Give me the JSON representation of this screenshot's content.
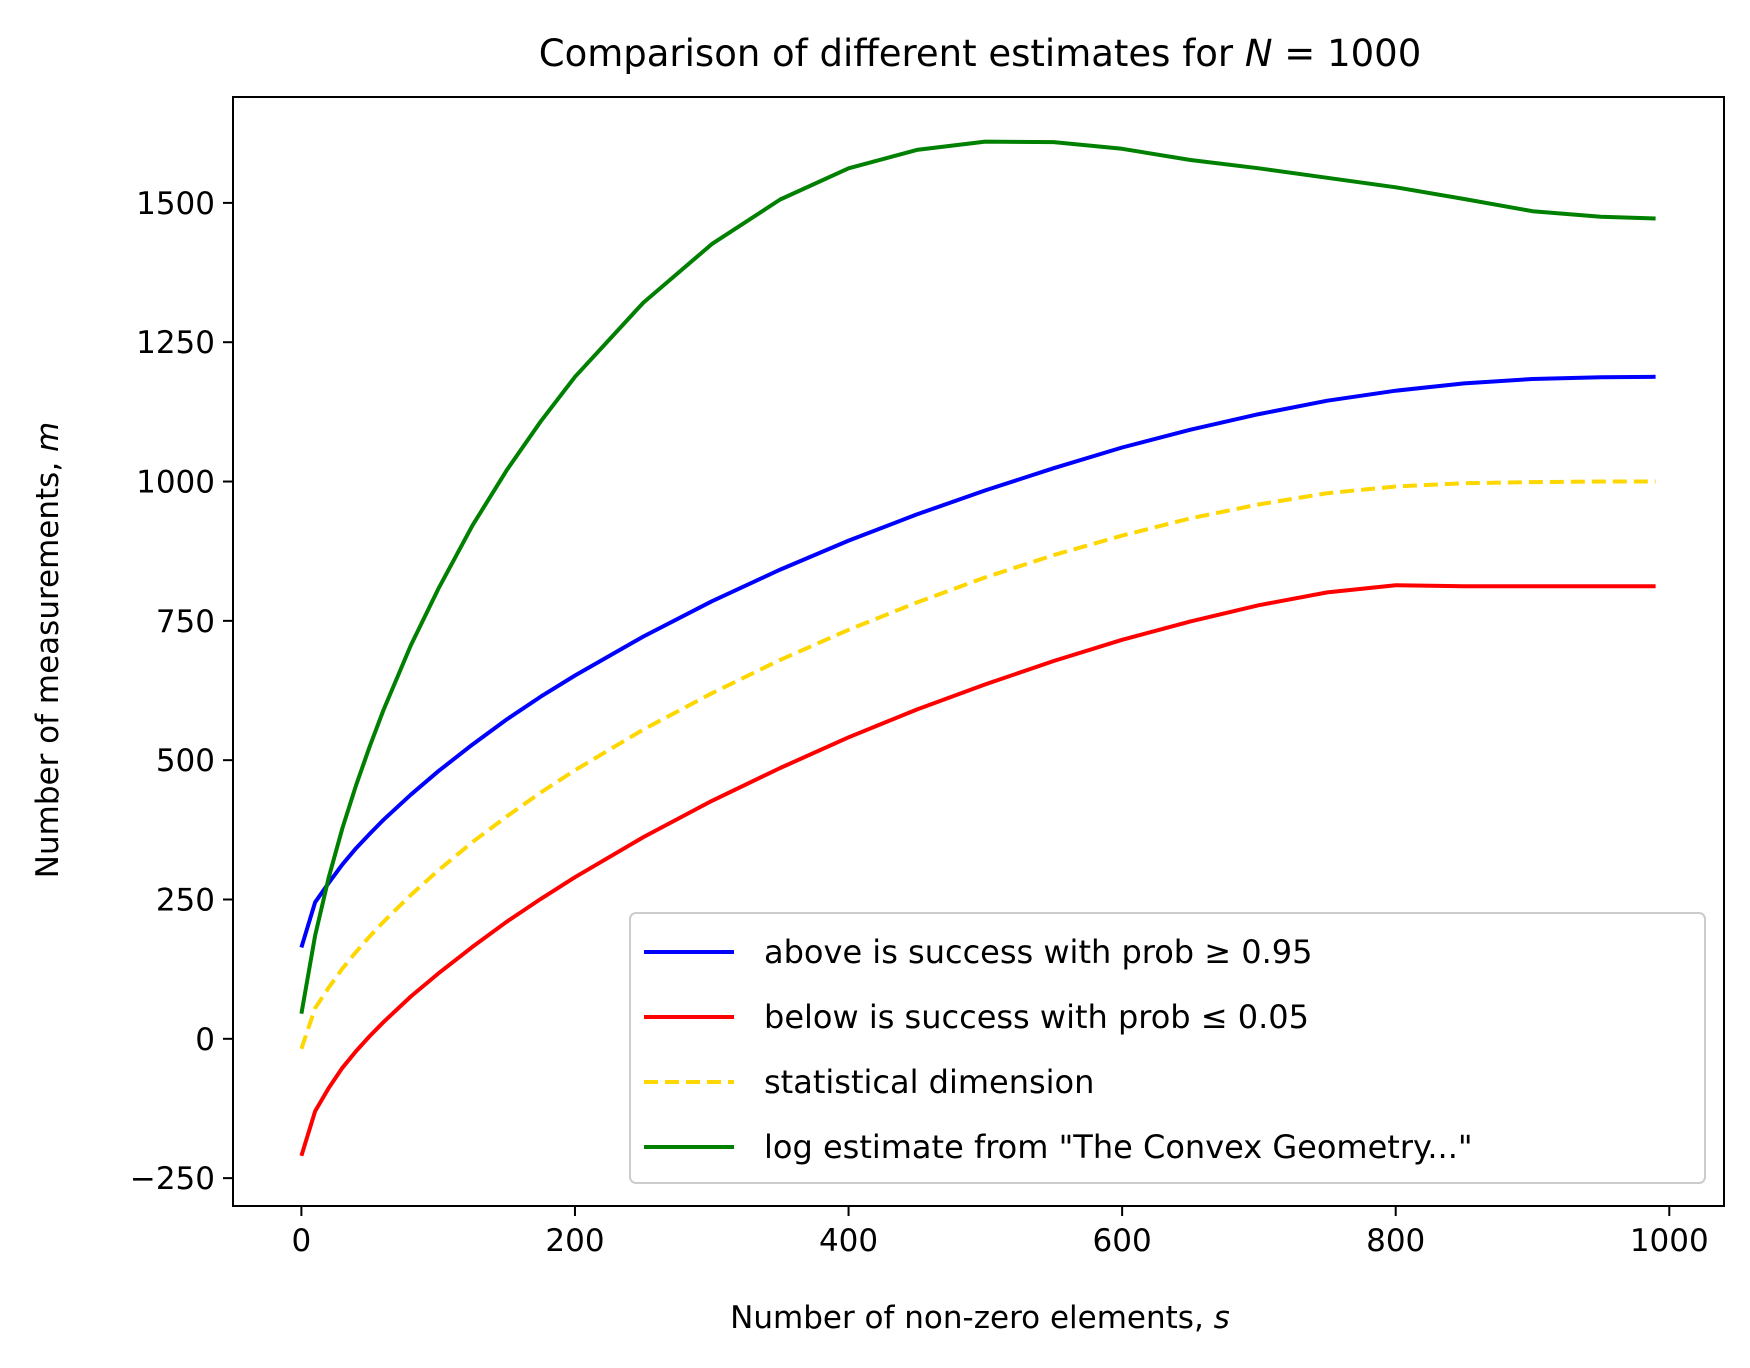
{
  "chart_data": {
    "type": "line",
    "title": "Comparison of different estimates for N = 1000",
    "title_parts": {
      "prefix": "Comparison of different estimates for ",
      "var": "N",
      "suffix": " = 1000"
    },
    "xlabel": "Number of non-zero elements, s",
    "xlabel_parts": {
      "prefix": "Number of non-zero elements, ",
      "var": "s"
    },
    "ylabel": "Number of measurements, m",
    "ylabel_parts": {
      "prefix": "Number of measurements, ",
      "var": "m"
    },
    "xlim": [
      -50,
      1040
    ],
    "ylim": [
      -300,
      1690
    ],
    "xticks": [
      0,
      200,
      400,
      600,
      800,
      1000
    ],
    "xtick_labels": [
      "0",
      "200",
      "400",
      "600",
      "800",
      "1000"
    ],
    "yticks": [
      -250,
      0,
      250,
      500,
      750,
      1000,
      1250,
      1500
    ],
    "ytick_labels": [
      "−250",
      "0",
      "250",
      "500",
      "750",
      "1000",
      "1250",
      "1500"
    ],
    "grid": false,
    "legend_position": "lower-right",
    "x": [
      0,
      10,
      20,
      30,
      40,
      50,
      60,
      80,
      100,
      125,
      150,
      175,
      200,
      250,
      300,
      350,
      400,
      450,
      500,
      550,
      600,
      650,
      700,
      750,
      800,
      850,
      900,
      950,
      990
    ],
    "series": [
      {
        "name": "above is success with prob ≥ 0.95",
        "color": "#0000ff",
        "dash": "solid",
        "values": [
          164,
          245,
          280,
          313,
          342,
          368,
          393,
          438,
          480,
          528,
          573,
          614,
          652,
          722,
          785,
          842,
          894,
          941,
          984,
          1024,
          1061,
          1093,
          1121,
          1145,
          1163,
          1176,
          1184,
          1187,
          1188
        ]
      },
      {
        "name": "below is success with prob ≤ 0.05",
        "color": "#ff0000",
        "dash": "solid",
        "values": [
          -210,
          -130,
          -88,
          -52,
          -22,
          5,
          30,
          76,
          117,
          165,
          210,
          251,
          290,
          362,
          427,
          486,
          541,
          591,
          636,
          678,
          716,
          749,
          778,
          801,
          814,
          812,
          812,
          812,
          812
        ]
      },
      {
        "name": "statistical dimension",
        "color": "#ffd700",
        "dash": "dashed",
        "values": [
          -18,
          55,
          92,
          126,
          156,
          184,
          210,
          258,
          302,
          353,
          399,
          442,
          482,
          555,
          620,
          680,
          734,
          783,
          828,
          868,
          903,
          934,
          959,
          979,
          991,
          997,
          999,
          1000,
          1000
        ]
      },
      {
        "name": "log estimate from \"The Convex Geometry...\"",
        "color": "#008000",
        "dash": "solid",
        "values": [
          45,
          185,
          290,
          378,
          455,
          525,
          590,
          706,
          807,
          921,
          1020,
          1108,
          1188,
          1321,
          1426,
          1506,
          1562,
          1595,
          1610,
          1609,
          1597,
          1577,
          1562,
          1545,
          1528,
          1507,
          1485,
          1475,
          1472
        ]
      }
    ]
  }
}
